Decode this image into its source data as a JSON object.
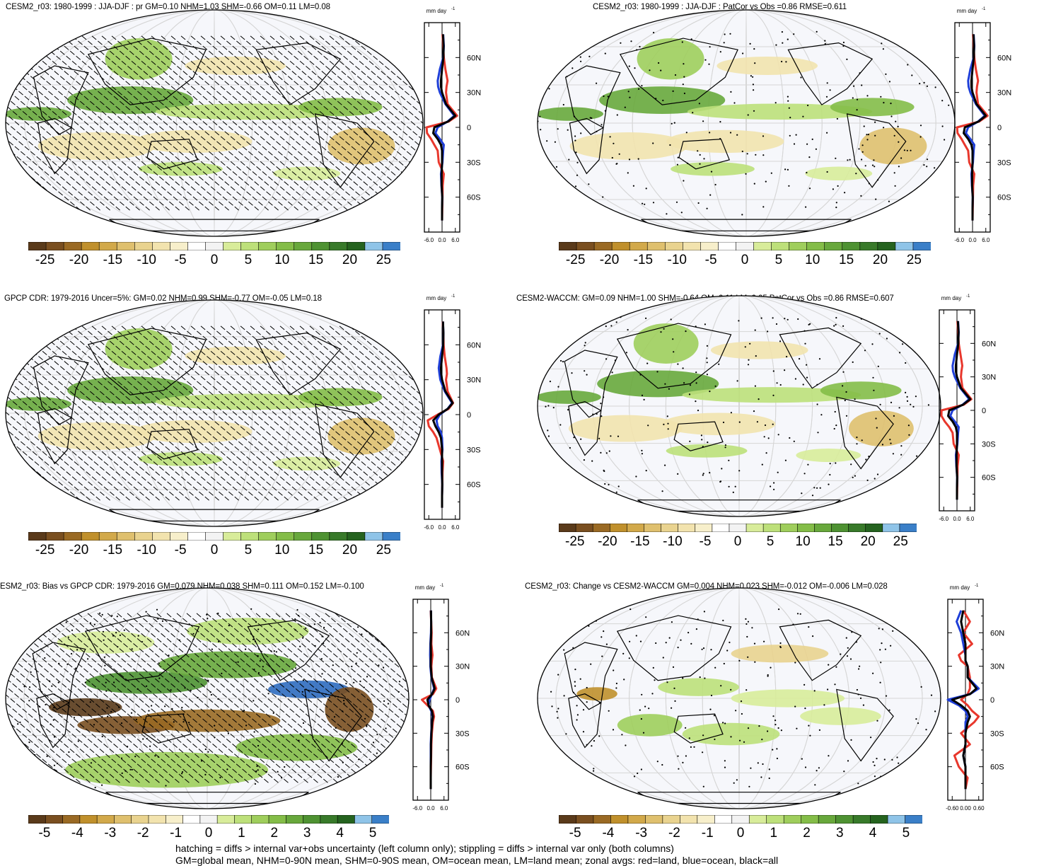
{
  "panels": [
    {
      "title": "CESM2_r03: 1980-1999 : JJA-DJF : pr GM=0.10 NHM=1.03 SHM=-0.66 OM=0.11 LM=0.08",
      "hatching": true,
      "stippling": false
    },
    {
      "title": "CESM2_r03: 1980-1999 : JJA-DJF : PatCor vs Obs =0.86 RMSE=0.611",
      "hatching": false,
      "stippling": true
    },
    {
      "title": "GPCP CDR: 1979-2016 Uncer=5%: GM=0.02 NHM=0.99 SHM=-0.77 OM=-0.05 LM=0.18",
      "hatching": true,
      "stippling": false
    },
    {
      "title": "CESM2-WACCM: GM=0.09 NHM=1.00 SHM=-0.64 OM=0.11 LM=0.05 PatCor vs Obs =0.86 RMSE=0.607",
      "hatching": false,
      "stippling": true
    },
    {
      "title": "ESM2_r03: Bias vs GPCP CDR: 1979-2016 GM=0.079 NHM=0.038 SHM=0.111 OM=0.152 LM=-0.100",
      "hatching": true,
      "stippling": true
    },
    {
      "title": "CESM2_r03: Change vs CESM2-WACCM GM=0.004 NHM=0.023 SHM=-0.012 OM=-0.006 LM=0.028",
      "hatching": false,
      "stippling": true
    }
  ],
  "zonal_unit": "mm day",
  "zonal_unit_exp": "-1",
  "lat_ticks": [
    "60N",
    "30N",
    "0",
    "30S",
    "60S"
  ],
  "zonal_xticks_main": [
    "-6.0",
    "0.0",
    "6.0"
  ],
  "zonal_xticks_change": [
    "-0.60",
    "0.00",
    "0.60"
  ],
  "colorbar_labels_main": [
    "-25",
    "-20",
    "-15",
    "-10",
    "-5",
    "0",
    "5",
    "10",
    "15",
    "20",
    "25"
  ],
  "colorbar_labels_diff": [
    "-5",
    "-4",
    "-3",
    "-2",
    "-1",
    "0",
    "1",
    "2",
    "3",
    "4",
    "5"
  ],
  "colors": {
    "colorbar": [
      "#5a3a1a",
      "#7a4f20",
      "#9a6a24",
      "#c0902c",
      "#d2a94a",
      "#dfc06e",
      "#e9d38f",
      "#f2e3ae",
      "#f7efcb",
      "#ffffff",
      "#f3f3f3",
      "#d8ec9a",
      "#bde07a",
      "#9fce5c",
      "#84bd48",
      "#68a83c",
      "#4e9232",
      "#387a2a",
      "#25631f",
      "#8fc4e8",
      "#3a7fc8"
    ],
    "land_line": "#e8372c",
    "ocean_line": "#1f3fd8",
    "all_line": "#000000"
  },
  "chart_data": [
    {
      "type": "line",
      "panel": "CESM2_r03 1980-1999 JJA-DJF zonal mean",
      "xlabel": "mm day-1",
      "xlim": [
        -8,
        8
      ],
      "ylabel": "",
      "ylim": [
        -90,
        90
      ],
      "x_ticks": [
        -6.0,
        0.0,
        6.0
      ],
      "y": [
        80,
        70,
        60,
        50,
        40,
        35,
        30,
        20,
        10,
        5,
        0,
        -5,
        -10,
        -15,
        -20,
        -30,
        -40,
        -50,
        -60,
        -70,
        -80
      ],
      "series": [
        {
          "name": "land",
          "values": [
            0.2,
            0.5,
            0.8,
            1.5,
            2.5,
            2.0,
            1.8,
            2.5,
            6.8,
            3.0,
            -7.0,
            -6.8,
            -5.0,
            -3.5,
            -2.0,
            -1.5,
            0.8,
            0.3,
            0.2,
            0.1,
            0.0
          ]
        },
        {
          "name": "ocean",
          "values": [
            0.5,
            0.8,
            0.5,
            -1.0,
            -2.0,
            -1.8,
            -1.0,
            1.5,
            5.5,
            2.5,
            -2.0,
            -3.0,
            -1.0,
            0.8,
            0.5,
            0.2,
            -0.5,
            -0.3,
            0.1,
            0.0,
            0.0
          ]
        },
        {
          "name": "all",
          "values": [
            0.4,
            0.7,
            0.6,
            0.0,
            -0.5,
            -0.5,
            0.0,
            1.8,
            6.0,
            2.7,
            -3.5,
            -4.0,
            -2.0,
            -0.5,
            0.0,
            0.0,
            -0.2,
            -0.2,
            0.1,
            0.0,
            0.0
          ]
        }
      ]
    },
    {
      "type": "line",
      "panel": "CESM2_r03 PatCor vs Obs zonal mean",
      "xlabel": "mm day-1",
      "xlim": [
        -8,
        8
      ],
      "ylabel": "",
      "ylim": [
        -90,
        90
      ],
      "x_ticks": [
        -6.0,
        0.0,
        6.0
      ],
      "y": [
        80,
        70,
        60,
        50,
        40,
        35,
        30,
        20,
        10,
        5,
        0,
        -5,
        -10,
        -15,
        -20,
        -30,
        -40,
        -50,
        -60,
        -70,
        -80
      ],
      "series": [
        {
          "name": "land",
          "values": [
            0.2,
            0.5,
            0.8,
            1.5,
            2.5,
            2.0,
            1.8,
            2.5,
            6.8,
            3.0,
            -7.0,
            -6.8,
            -5.0,
            -3.5,
            -2.0,
            -1.5,
            0.8,
            0.3,
            0.2,
            0.1,
            0.0
          ]
        },
        {
          "name": "ocean",
          "values": [
            0.5,
            0.8,
            0.5,
            -1.0,
            -2.0,
            -1.8,
            -1.0,
            1.5,
            5.5,
            2.5,
            -2.0,
            -3.0,
            -1.0,
            0.8,
            0.5,
            0.2,
            -0.5,
            -0.3,
            0.1,
            0.0,
            0.0
          ]
        },
        {
          "name": "all",
          "values": [
            0.4,
            0.7,
            0.6,
            0.0,
            -0.5,
            -0.5,
            0.0,
            1.8,
            6.0,
            2.7,
            -3.5,
            -4.0,
            -2.0,
            -0.5,
            0.0,
            0.0,
            -0.2,
            -0.2,
            0.1,
            0.0,
            0.0
          ]
        }
      ]
    },
    {
      "type": "line",
      "panel": "GPCP CDR 1979-2016 zonal mean",
      "xlabel": "mm day-1",
      "xlim": [
        -8,
        8
      ],
      "ylabel": "",
      "ylim": [
        -90,
        90
      ],
      "x_ticks": [
        -6.0,
        0.0,
        6.0
      ],
      "y": [
        80,
        70,
        60,
        50,
        40,
        35,
        30,
        20,
        10,
        5,
        0,
        -5,
        -10,
        -15,
        -20,
        -30,
        -40,
        -50,
        -60,
        -70,
        -80
      ],
      "series": [
        {
          "name": "land",
          "values": [
            0.3,
            0.6,
            0.7,
            1.2,
            2.0,
            2.2,
            1.8,
            2.5,
            5.0,
            3.0,
            -2.0,
            -6.5,
            -6.0,
            -4.0,
            -2.5,
            -1.0,
            0.5,
            0.2,
            0.1,
            0.0,
            0.0
          ]
        },
        {
          "name": "ocean",
          "values": [
            0.4,
            0.6,
            0.4,
            -0.8,
            -1.5,
            -1.2,
            -0.8,
            1.2,
            4.5,
            2.5,
            -1.0,
            -2.5,
            -2.0,
            -0.5,
            0.0,
            0.2,
            -0.3,
            -0.2,
            0.1,
            0.0,
            0.0
          ]
        },
        {
          "name": "all",
          "values": [
            0.4,
            0.6,
            0.5,
            0.0,
            -0.5,
            -0.4,
            0.0,
            1.5,
            4.8,
            2.6,
            -1.5,
            -4.0,
            -3.0,
            -1.5,
            -0.5,
            0.0,
            0.0,
            0.0,
            0.1,
            0.0,
            0.0
          ]
        }
      ]
    },
    {
      "type": "line",
      "panel": "CESM2-WACCM zonal mean",
      "xlabel": "mm day-1",
      "xlim": [
        -8,
        8
      ],
      "ylabel": "",
      "ylim": [
        -90,
        90
      ],
      "x_ticks": [
        -6.0,
        0.0,
        6.0
      ],
      "y": [
        80,
        70,
        60,
        50,
        40,
        35,
        30,
        20,
        10,
        5,
        0,
        -5,
        -10,
        -15,
        -20,
        -30,
        -40,
        -50,
        -60,
        -70,
        -80
      ],
      "series": [
        {
          "name": "land",
          "values": [
            0.2,
            0.5,
            0.8,
            1.6,
            2.4,
            2.0,
            1.8,
            2.5,
            6.5,
            3.0,
            -7.0,
            -7.0,
            -5.5,
            -3.5,
            -2.0,
            -1.5,
            0.8,
            0.3,
            0.2,
            0.1,
            0.0
          ]
        },
        {
          "name": "ocean",
          "values": [
            0.5,
            0.8,
            0.5,
            -1.0,
            -2.0,
            -1.8,
            -1.0,
            1.5,
            5.5,
            2.5,
            -2.0,
            -3.0,
            -1.0,
            0.8,
            0.5,
            0.2,
            -0.5,
            -0.3,
            0.1,
            0.0,
            0.0
          ]
        },
        {
          "name": "all",
          "values": [
            0.4,
            0.7,
            0.6,
            0.0,
            -0.5,
            -0.5,
            0.0,
            1.8,
            6.0,
            2.7,
            -3.5,
            -4.0,
            -2.0,
            -0.5,
            0.0,
            0.0,
            -0.2,
            -0.2,
            0.1,
            0.0,
            0.0
          ]
        }
      ]
    },
    {
      "type": "line",
      "panel": "CESM2_r03 Bias vs GPCP zonal mean",
      "xlabel": "mm day-1",
      "xlim": [
        -8,
        8
      ],
      "ylabel": "",
      "ylim": [
        -90,
        90
      ],
      "x_ticks": [
        -6.0,
        0.0,
        6.0
      ],
      "y": [
        80,
        70,
        60,
        50,
        40,
        35,
        30,
        20,
        10,
        5,
        0,
        -5,
        -10,
        -15,
        -20,
        -30,
        -40,
        -50,
        -60,
        -70,
        -80
      ],
      "series": [
        {
          "name": "land",
          "values": [
            0.0,
            0.2,
            0.4,
            0.3,
            0.8,
            0.5,
            0.3,
            0.5,
            2.5,
            1.0,
            -4.0,
            -1.5,
            1.0,
            1.5,
            1.0,
            0.5,
            0.3,
            0.2,
            0.1,
            0.0,
            0.0
          ]
        },
        {
          "name": "ocean",
          "values": [
            0.1,
            0.2,
            0.1,
            -0.2,
            -0.3,
            -0.2,
            -0.2,
            0.3,
            1.5,
            0.5,
            -0.5,
            -1.0,
            0.2,
            0.8,
            0.5,
            0.2,
            0.0,
            0.0,
            0.0,
            0.0,
            0.0
          ]
        },
        {
          "name": "all",
          "values": [
            0.1,
            0.2,
            0.2,
            0.0,
            0.1,
            0.0,
            0.0,
            0.4,
            1.8,
            0.6,
            -1.5,
            -1.0,
            0.5,
            1.0,
            0.6,
            0.3,
            0.1,
            0.1,
            0.0,
            0.0,
            0.0
          ]
        }
      ]
    },
    {
      "type": "line",
      "panel": "CESM2_r03 Change vs CESM2-WACCM zonal mean",
      "xlabel": "mm day-1",
      "xlim": [
        -0.8,
        0.8
      ],
      "ylabel": "",
      "ylim": [
        -90,
        90
      ],
      "x_ticks": [
        -0.6,
        0.0,
        0.6
      ],
      "y": [
        80,
        70,
        60,
        50,
        40,
        35,
        30,
        20,
        10,
        5,
        0,
        -5,
        -10,
        -15,
        -20,
        -30,
        -40,
        -50,
        -60,
        -70,
        -80
      ],
      "series": [
        {
          "name": "land",
          "values": [
            -0.1,
            0.2,
            -0.1,
            0.3,
            -0.3,
            -0.2,
            0.1,
            0.2,
            0.2,
            0.1,
            -0.2,
            0.1,
            0.3,
            0.6,
            0.4,
            -0.2,
            0.2,
            -0.5,
            -0.3,
            0.1,
            0.0
          ]
        },
        {
          "name": "ocean",
          "values": [
            -0.2,
            -0.4,
            -0.2,
            -0.1,
            0.0,
            0.0,
            0.1,
            0.1,
            0.6,
            0.2,
            -0.8,
            -0.3,
            0.0,
            0.1,
            0.0,
            0.0,
            0.0,
            -0.1,
            0.0,
            0.0,
            0.0
          ]
        },
        {
          "name": "all",
          "values": [
            -0.1,
            -0.2,
            -0.1,
            0.0,
            0.0,
            0.0,
            0.1,
            0.1,
            0.5,
            0.2,
            -0.6,
            -0.2,
            0.1,
            0.2,
            0.1,
            0.0,
            0.0,
            -0.1,
            0.0,
            0.0,
            0.0
          ]
        }
      ]
    }
  ],
  "footer": {
    "line1": "hatching = diffs > internal var+obs uncertainty (left column only); stippling = diffs > internal var only (both columns)",
    "line2": "GM=global mean, NHM=0-90N mean, SHM=0-90S mean, OM=ocean mean, LM=land mean; zonal avgs: red=land, blue=ocean, black=all"
  }
}
